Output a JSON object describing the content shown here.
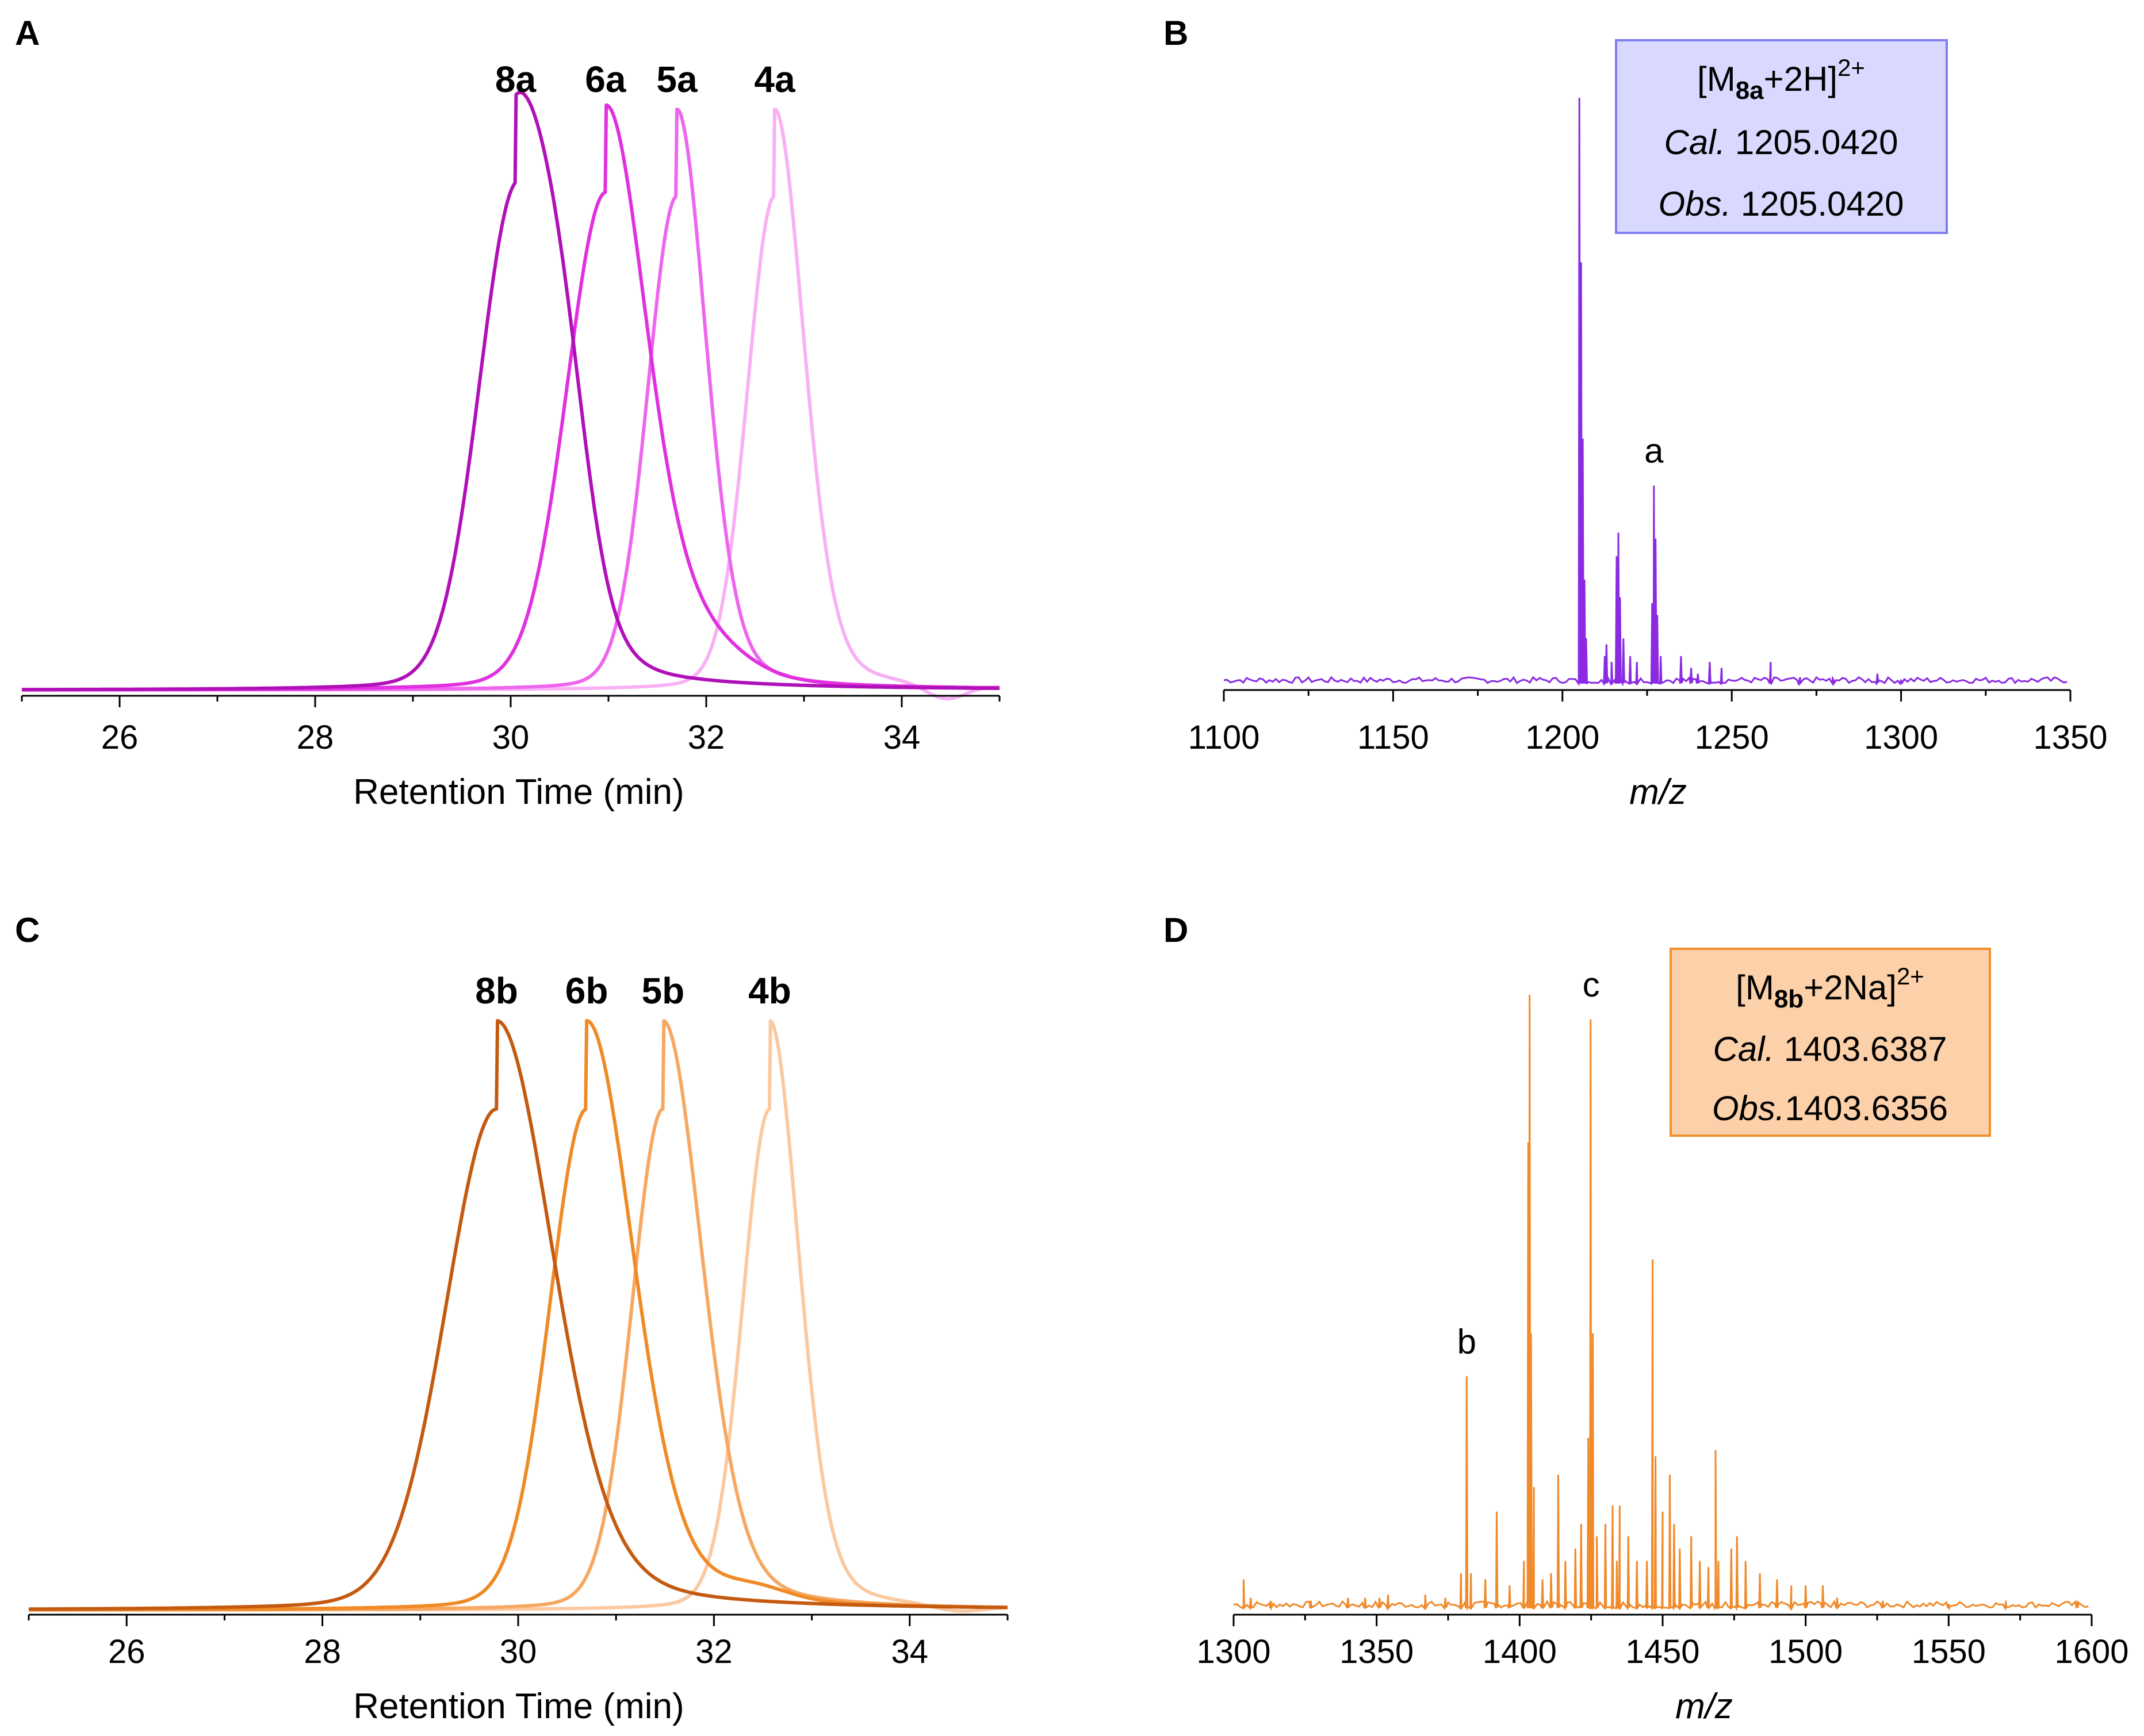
{
  "chart_data": [
    {
      "panel": "A",
      "type": "line",
      "subtype": "chromatogram",
      "xlabel": "Retention Time (min)",
      "ylabel": "",
      "xlim": [
        25,
        35
      ],
      "xticks": [
        26,
        28,
        30,
        32,
        34
      ],
      "series": [
        {
          "name": "8a",
          "color": "#b010b8",
          "peak": 30.05,
          "width_left": 0.38,
          "width_right": 0.45,
          "shoulder": {
            "at": 30.55,
            "amp": 0.18,
            "width": 0.25
          },
          "dip": null
        },
        {
          "name": "6a",
          "color": "#e030e0",
          "peak": 30.97,
          "width_left": 0.4,
          "width_right": 0.42,
          "shoulder": {
            "at": 31.9,
            "amp": 0.06,
            "width": 0.45
          },
          "dip": null
        },
        {
          "name": "5a",
          "color": "#ee66ee",
          "peak": 31.7,
          "width_left": 0.3,
          "width_right": 0.3,
          "shoulder": null,
          "dip": null
        },
        {
          "name": "4a",
          "color": "#f8b0f5",
          "peak": 32.7,
          "width_left": 0.28,
          "width_right": 0.3,
          "shoulder": null,
          "dip": {
            "at": 34.45,
            "amp": -0.025,
            "width": 0.2
          }
        }
      ]
    },
    {
      "panel": "B",
      "type": "line",
      "subtype": "mass-spectrum",
      "color": "#8a2be2",
      "xlabel": "m/z",
      "ylabel": "",
      "xlim": [
        1100,
        1350
      ],
      "xticks": [
        1100,
        1150,
        1200,
        1250,
        1300,
        1350
      ],
      "peaks": [
        [
          1205.0,
          1.0
        ],
        [
          1205.5,
          0.72
        ],
        [
          1206.0,
          0.42
        ],
        [
          1206.5,
          0.18
        ],
        [
          1207.0,
          0.08
        ],
        [
          1212.5,
          0.05
        ],
        [
          1213.0,
          0.07
        ],
        [
          1214.5,
          0.04
        ],
        [
          1216.0,
          0.22
        ],
        [
          1216.5,
          0.26
        ],
        [
          1217.0,
          0.15
        ],
        [
          1218.0,
          0.08
        ],
        [
          1220.0,
          0.05
        ],
        [
          1222.0,
          0.04
        ],
        [
          1226.5,
          0.14
        ],
        [
          1227.0,
          0.34
        ],
        [
          1227.5,
          0.25
        ],
        [
          1228.0,
          0.12
        ],
        [
          1229.0,
          0.05
        ],
        [
          1235.0,
          0.05
        ],
        [
          1238.0,
          0.03
        ],
        [
          1240.0,
          0.02
        ],
        [
          1243.5,
          0.04
        ],
        [
          1247.0,
          0.03
        ],
        [
          1261.5,
          0.04
        ],
        [
          1270.0,
          0.01
        ],
        [
          1280.0,
          0.01
        ],
        [
          1293.0,
          0.02
        ],
        [
          1300.0,
          0.01
        ]
      ],
      "annotations": [
        {
          "text": "a",
          "x": 1227.0
        }
      ],
      "box": {
        "ion_base": "[M",
        "ion_sub": "8a",
        "ion_mid": "+2H]",
        "ion_sup": "2+",
        "cal_label": "Cal.",
        "cal_value": "1205.0420",
        "obs_label": "Obs.",
        "obs_value": "1205.0420",
        "fill": "#d9d9ff",
        "stroke": "#7f7fef"
      }
    },
    {
      "panel": "C",
      "type": "line",
      "subtype": "chromatogram",
      "xlabel": "Retention Time (min)",
      "ylabel": "",
      "xlim": [
        25,
        35
      ],
      "xticks": [
        26,
        28,
        30,
        32,
        34
      ],
      "series": [
        {
          "name": "8b",
          "color": "#c45a10",
          "peak": 29.78,
          "width_left": 0.52,
          "width_right": 0.58,
          "shoulder": null,
          "dip": null
        },
        {
          "name": "6b",
          "color": "#ef8a26",
          "peak": 30.7,
          "width_left": 0.38,
          "width_right": 0.48,
          "shoulder": {
            "at": 32.4,
            "amp": 0.02,
            "width": 0.35
          },
          "dip": null
        },
        {
          "name": "5b",
          "color": "#f6a862",
          "peak": 31.48,
          "width_left": 0.32,
          "width_right": 0.4,
          "shoulder": null,
          "dip": null
        },
        {
          "name": "4b",
          "color": "#fac9a0",
          "peak": 32.57,
          "width_left": 0.28,
          "width_right": 0.3,
          "shoulder": null,
          "dip": {
            "at": 34.5,
            "amp": -0.01,
            "width": 0.25
          }
        }
      ]
    },
    {
      "panel": "D",
      "type": "line",
      "subtype": "mass-spectrum",
      "color": "#f08a2a",
      "xlabel": "m/z",
      "ylabel": "",
      "xlim": [
        1300,
        1600
      ],
      "xticks": [
        1300,
        1350,
        1400,
        1450,
        1500,
        1550,
        1600
      ],
      "peaks": [
        [
          1303.5,
          0.05
        ],
        [
          1306.0,
          0.02
        ],
        [
          1313.0,
          0.015
        ],
        [
          1327.0,
          0.015
        ],
        [
          1340.0,
          0.02
        ],
        [
          1346.0,
          0.02
        ],
        [
          1351.0,
          0.02
        ],
        [
          1354.0,
          0.025
        ],
        [
          1367.0,
          0.025
        ],
        [
          1374.0,
          0.02
        ],
        [
          1379.5,
          0.06
        ],
        [
          1381.5,
          0.38
        ],
        [
          1383.0,
          0.06
        ],
        [
          1388.0,
          0.05
        ],
        [
          1392.0,
          0.16
        ],
        [
          1396.5,
          0.04
        ],
        [
          1401.5,
          0.08
        ],
        [
          1403.0,
          0.76
        ],
        [
          1403.5,
          1.0
        ],
        [
          1404.0,
          0.45
        ],
        [
          1405.0,
          0.2
        ],
        [
          1408.0,
          0.05
        ],
        [
          1411.0,
          0.06
        ],
        [
          1413.5,
          0.22
        ],
        [
          1416.0,
          0.08
        ],
        [
          1419.5,
          0.1
        ],
        [
          1421.5,
          0.14
        ],
        [
          1424.0,
          0.28
        ],
        [
          1424.8,
          0.96
        ],
        [
          1425.6,
          0.45
        ],
        [
          1427.0,
          0.12
        ],
        [
          1430.0,
          0.14
        ],
        [
          1432.5,
          0.17
        ],
        [
          1434.0,
          0.08
        ],
        [
          1435.0,
          0.17
        ],
        [
          1438.0,
          0.12
        ],
        [
          1441.0,
          0.08
        ],
        [
          1444.5,
          0.08
        ],
        [
          1446.5,
          0.57
        ],
        [
          1447.5,
          0.25
        ],
        [
          1450.0,
          0.16
        ],
        [
          1452.5,
          0.22
        ],
        [
          1454.0,
          0.14
        ],
        [
          1456.0,
          0.1
        ],
        [
          1460.0,
          0.12
        ],
        [
          1463.0,
          0.08
        ],
        [
          1466.0,
          0.07
        ],
        [
          1468.5,
          0.26
        ],
        [
          1469.5,
          0.08
        ],
        [
          1474.0,
          0.1
        ],
        [
          1476.0,
          0.12
        ],
        [
          1479.0,
          0.08
        ],
        [
          1484.0,
          0.06
        ],
        [
          1490.0,
          0.05
        ],
        [
          1495.0,
          0.04
        ],
        [
          1500.0,
          0.04
        ],
        [
          1506.0,
          0.04
        ],
        [
          1511.0,
          0.02
        ],
        [
          1527.0,
          0.015
        ],
        [
          1550.0,
          0.01
        ],
        [
          1570.0,
          0.015
        ],
        [
          1595.0,
          0.015
        ]
      ],
      "annotations": [
        {
          "text": "b",
          "x": 1381.5
        },
        {
          "text": "c",
          "x": 1425.0
        }
      ],
      "box": {
        "ion_base": "[M",
        "ion_sub": "8b",
        "ion_mid": "+2Na]",
        "ion_sup": "2+",
        "cal_label": "Cal.",
        "cal_value": "1403.6387",
        "obs_label": "Obs.",
        "obs_value": "1403.6356",
        "fill": "#fcd0a8",
        "stroke": "#f0912e"
      }
    }
  ]
}
